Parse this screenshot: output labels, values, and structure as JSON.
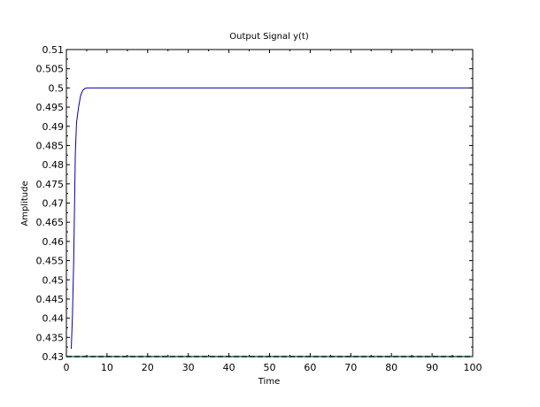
{
  "chart_data": {
    "type": "line",
    "title": "Output Signal y(t)",
    "xlabel": "Time",
    "ylabel": "Amplitude",
    "xlim": [
      0,
      100
    ],
    "ylim": [
      0.43,
      0.51
    ],
    "xticks": [
      0,
      10,
      20,
      30,
      40,
      50,
      60,
      70,
      80,
      90,
      100
    ],
    "yticks": [
      0.43,
      0.435,
      0.44,
      0.445,
      0.45,
      0.455,
      0.46,
      0.465,
      0.47,
      0.475,
      0.48,
      0.485,
      0.49,
      0.495,
      0.5,
      0.505,
      0.51
    ],
    "xtick_labels": [
      "0",
      "10",
      "20",
      "30",
      "40",
      "50",
      "60",
      "70",
      "80",
      "90",
      "100"
    ],
    "ytick_labels": [
      "0.43",
      "0.435",
      "0.44",
      "0.445",
      "0.45",
      "0.455",
      "0.46",
      "0.465",
      "0.47",
      "0.475",
      "0.48",
      "0.485",
      "0.49",
      "0.495",
      "0.5",
      "0.505",
      "0.51"
    ],
    "grid": false,
    "legend": "none",
    "series": [
      {
        "color": "#0000aa",
        "x": [
          1.2,
          1.5,
          1.8,
          2.0,
          2.2,
          2.5,
          3.0,
          3.5,
          4.0,
          4.5,
          5.0,
          100
        ],
        "y": [
          0.432,
          0.441,
          0.455,
          0.469,
          0.483,
          0.491,
          0.495,
          0.498,
          0.4993,
          0.4998,
          0.5,
          0.5
        ]
      },
      {
        "color": "#00aa88",
        "dash": "dashed",
        "x": [
          0,
          100
        ],
        "y": [
          0.43,
          0.43
        ]
      }
    ]
  }
}
